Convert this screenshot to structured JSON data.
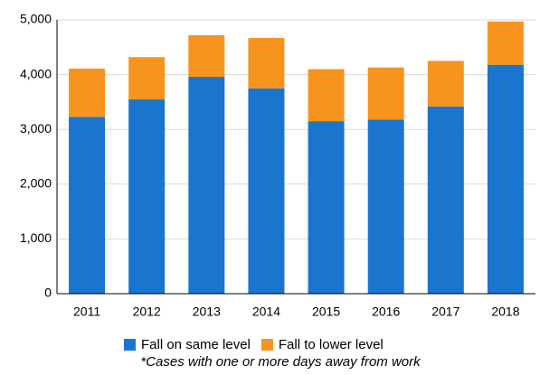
{
  "chart_data": {
    "type": "stacked_bar",
    "categories": [
      "2011",
      "2012",
      "2013",
      "2014",
      "2015",
      "2016",
      "2017",
      "2018"
    ],
    "series": [
      {
        "name": "Fall on same level",
        "color": "#1a75cf",
        "values": [
          3230,
          3550,
          3960,
          3750,
          3150,
          3180,
          3420,
          4180
        ]
      },
      {
        "name": "Fall to lower level",
        "color": "#f7941d",
        "values": [
          880,
          770,
          760,
          920,
          950,
          950,
          830,
          790
        ]
      }
    ],
    "ylim": [
      0,
      5000
    ],
    "yticks": [
      0,
      {
        "value": 1000,
        "label": "1,000"
      },
      {
        "value": 2000,
        "label": "2,000"
      },
      {
        "value": 3000,
        "label": "3,000"
      },
      {
        "value": 4000,
        "label": "4,000"
      },
      {
        "value": 5000,
        "label": "5,000"
      }
    ],
    "grid": true,
    "legend": "bottom",
    "note": "*Cases with one or more days away from work"
  }
}
